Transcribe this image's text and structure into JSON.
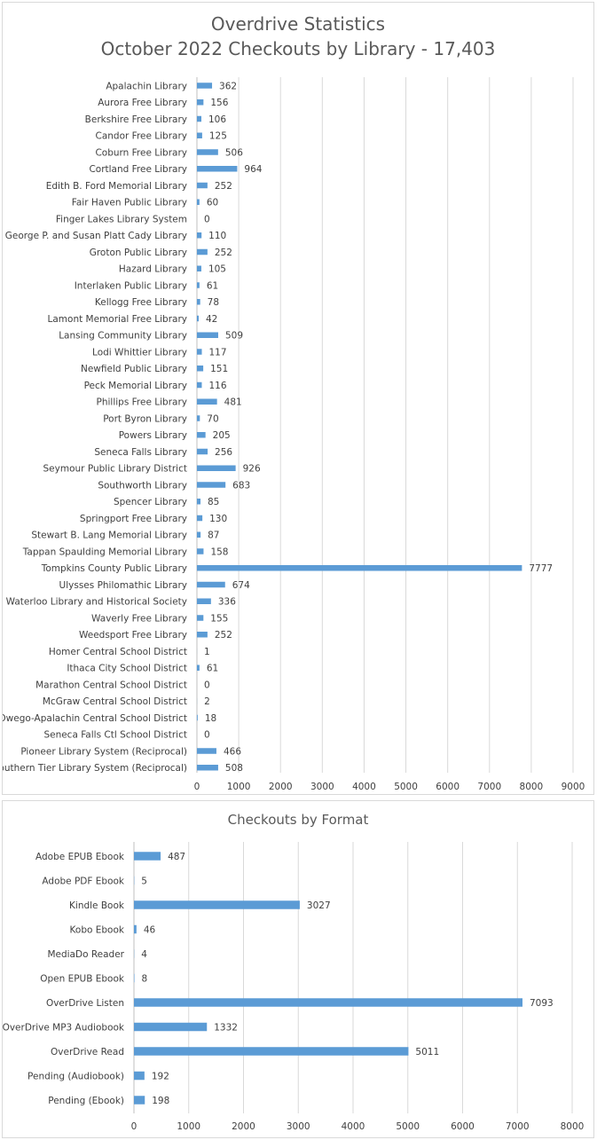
{
  "chart_data": [
    {
      "type": "bar",
      "orientation": "horizontal",
      "title": "Overdrive Statistics",
      "subtitle": "October 2022 Checkouts by Library - 17,403",
      "categories": [
        "Apalachin Library",
        "Aurora Free Library",
        "Berkshire Free Library",
        "Candor Free Library",
        "Coburn Free Library",
        "Cortland Free Library",
        "Edith B. Ford Memorial Library",
        "Fair Haven Public Library",
        "Finger Lakes Library System",
        "George P. and Susan Platt Cady Library",
        "Groton Public Library",
        "Hazard Library",
        "Interlaken Public Library",
        "Kellogg Free Library",
        "Lamont Memorial Free Library",
        "Lansing Community Library",
        "Lodi Whittier Library",
        "Newfield Public Library",
        "Peck Memorial Library",
        "Phillips Free Library",
        "Port Byron Library",
        "Powers Library",
        "Seneca Falls Library",
        "Seymour Public Library District",
        "Southworth Library",
        "Spencer Library",
        "Springport Free Library",
        "Stewart B. Lang Memorial Library",
        "Tappan Spaulding Memorial Library",
        "Tompkins County Public Library",
        "Ulysses Philomathic Library",
        "Waterloo Library and Historical Society",
        "Waverly Free Library",
        "Weedsport Free Library",
        "Homer Central School District",
        "Ithaca City School District",
        "Marathon Central School District",
        "McGraw Central School District",
        "Owego-Apalachin Central School District",
        "Seneca Falls Ctl School District",
        "Pioneer Library System (Reciprocal)",
        "Southern Tier Library System (Reciprocal)"
      ],
      "values": [
        362,
        156,
        106,
        125,
        506,
        964,
        252,
        60,
        0,
        110,
        252,
        105,
        61,
        78,
        42,
        509,
        117,
        151,
        116,
        481,
        70,
        205,
        256,
        926,
        683,
        85,
        130,
        87,
        158,
        7777,
        674,
        336,
        155,
        252,
        1,
        61,
        0,
        2,
        18,
        0,
        466,
        508
      ],
      "xlim": [
        0,
        9000
      ],
      "ticks": [
        "0",
        "1000",
        "2000",
        "3000",
        "4000",
        "5000",
        "6000",
        "7000",
        "8000",
        "9000"
      ],
      "grid": "vertical",
      "color": "#5b9bd5"
    },
    {
      "type": "bar",
      "orientation": "horizontal",
      "title": "Checkouts by Format",
      "categories": [
        "Adobe EPUB Ebook",
        "Adobe PDF Ebook",
        "Kindle Book",
        "Kobo Ebook",
        "MediaDo Reader",
        "Open EPUB Ebook",
        "OverDrive Listen",
        "OverDrive MP3 Audiobook",
        "OverDrive Read",
        "Pending (Audiobook)",
        "Pending (Ebook)"
      ],
      "values": [
        487,
        5,
        3027,
        46,
        4,
        8,
        7093,
        1332,
        5011,
        192,
        198
      ],
      "xlim": [
        0,
        8000
      ],
      "ticks": [
        "0",
        "1000",
        "2000",
        "3000",
        "4000",
        "5000",
        "6000",
        "7000",
        "8000"
      ],
      "grid": "vertical",
      "color": "#5b9bd5"
    }
  ]
}
